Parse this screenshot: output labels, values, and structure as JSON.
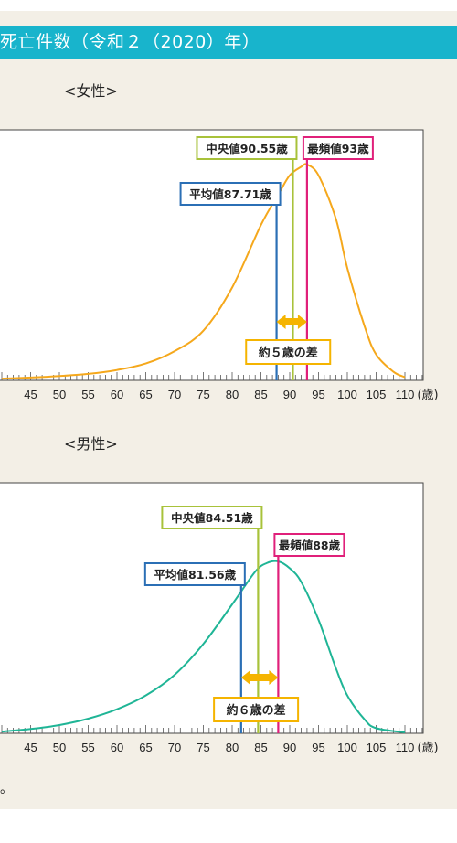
{
  "header": {
    "title": "死亡件数（令和２（2020）年）"
  },
  "footer_note": "。",
  "chart_data": [
    {
      "type": "line",
      "title": "<女性>",
      "x_unit": "(歳)",
      "x_ticks": [
        45,
        50,
        55,
        60,
        65,
        70,
        75,
        80,
        85,
        90,
        95,
        100,
        105,
        110
      ],
      "xlim": [
        40,
        114
      ],
      "color": "#f5a81c",
      "series": [
        {
          "x": [
            40,
            45,
            50,
            55,
            60,
            65,
            70,
            75,
            80,
            85,
            88,
            90,
            92,
            93,
            95,
            98,
            100,
            103,
            105,
            108,
            110
          ],
          "values": [
            0.8,
            1.3,
            2.0,
            3.0,
            4.8,
            7.8,
            13.5,
            23,
            43,
            72,
            86,
            95,
            99,
            100,
            95,
            75,
            52,
            25,
            12,
            4,
            1.5
          ]
        }
      ],
      "markers": [
        {
          "label": "平均値87.71歳",
          "value": 87.71,
          "color": "#2b6fb5"
        },
        {
          "label": "中央値90.55歳",
          "value": 90.55,
          "color": "#a8c23a"
        },
        {
          "label": "最頻値93歳",
          "value": 93,
          "color": "#e0207a"
        }
      ],
      "difference_label": "約５歳の差"
    },
    {
      "type": "line",
      "title": "<男性>",
      "x_unit": "(歳)",
      "x_ticks": [
        45,
        50,
        55,
        60,
        65,
        70,
        75,
        80,
        85,
        90,
        95,
        100,
        105,
        110
      ],
      "xlim": [
        40,
        114
      ],
      "color": "#1fb596",
      "series": [
        {
          "x": [
            40,
            45,
            50,
            55,
            60,
            65,
            70,
            75,
            80,
            84,
            86,
            88,
            90,
            92,
            95,
            98,
            100,
            103,
            105,
            110
          ],
          "values": [
            1.0,
            2.5,
            4.8,
            8.5,
            14,
            22,
            34,
            52,
            75,
            94,
            99,
            100,
            96,
            88,
            66,
            38,
            22,
            8,
            3,
            0.5
          ]
        }
      ],
      "markers": [
        {
          "label": "平均値81.56歳",
          "value": 81.56,
          "color": "#2b6fb5"
        },
        {
          "label": "中央値84.51歳",
          "value": 84.51,
          "color": "#a8c23a"
        },
        {
          "label": "最頻値88歳",
          "value": 88,
          "color": "#e0207a"
        }
      ],
      "difference_label": "約６歳の差"
    }
  ]
}
